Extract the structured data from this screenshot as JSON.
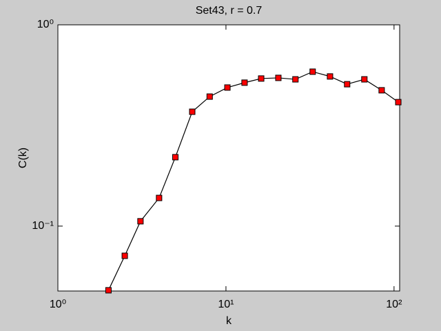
{
  "chart_data": {
    "type": "line",
    "title": "Set43, r = 0.7",
    "x_label": "k",
    "y_label": "C(k)",
    "x": [
      2,
      2.5,
      3.1,
      4,
      5,
      6.3,
      8,
      10.2,
      12.9,
      16.2,
      20.5,
      25.9,
      32.8,
      41.6,
      52.6,
      66.6,
      84.4,
      106
    ],
    "series": [
      {
        "name": "C(k)",
        "color": "#000000",
        "marker_color": "#ff0000",
        "values": [
          0.048,
          0.0712,
          0.1057,
          0.138,
          0.22,
          0.37,
          0.44,
          0.488,
          0.516,
          0.541,
          0.545,
          0.536,
          0.585,
          0.554,
          0.507,
          0.536,
          0.473,
          0.413
        ]
      }
    ],
    "x_scale": "log",
    "y_scale": "log",
    "xlim": [
      1,
      108
    ],
    "ylim": [
      0.0476,
      1
    ],
    "xticks": [
      {
        "value": 1,
        "label": "10⁰"
      },
      {
        "value": 10,
        "label": "10¹"
      },
      {
        "value": 100,
        "label": "10²"
      }
    ],
    "yticks": [
      {
        "value": 0.1,
        "label": "10⁻¹"
      },
      {
        "value": 1,
        "label": "10⁰"
      }
    ]
  }
}
